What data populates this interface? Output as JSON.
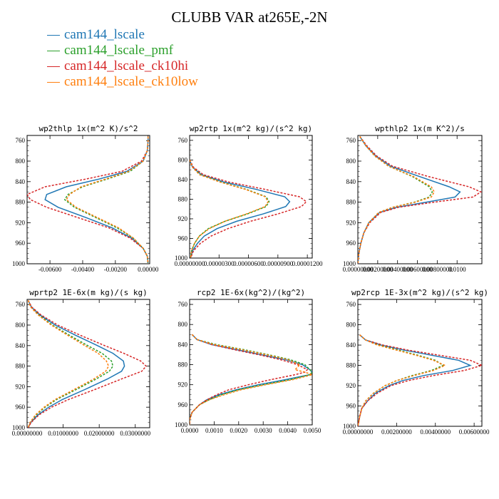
{
  "title": "CLUBB VAR at265E,-2N",
  "legend": [
    {
      "label": "cam144_lscale",
      "color": "#1f77b4"
    },
    {
      "label": "cam144_lscale_pmf",
      "color": "#2ca02c"
    },
    {
      "label": "cam144_lscale_ck10hi",
      "color": "#d62728"
    },
    {
      "label": "cam144_lscale_ck10low",
      "color": "#ff7f0e"
    }
  ],
  "chart_data": [
    {
      "type": "line",
      "title": "wp2thlp  1x(m^2 K)/s^2",
      "ylim": [
        1000,
        750
      ],
      "yticks": [
        760,
        800,
        840,
        880,
        920,
        960,
        1000
      ],
      "xlim": [
        -0.0074,
        0.0001
      ],
      "xticks": [
        -0.006,
        -0.004,
        -0.002,
        0.0
      ],
      "xtick_labels": [
        "-0.00600",
        "-0.00400",
        "-0.00200",
        "0.00000"
      ],
      "y": [
        752,
        760,
        780,
        800,
        820,
        835,
        850,
        865,
        875,
        890,
        910,
        930,
        950,
        970,
        985,
        1000
      ],
      "series": [
        {
          "color": "#1f77b4",
          "dash": false,
          "values": [
            0.0,
            0.0,
            -5e-05,
            -0.0003,
            -0.0013,
            -0.003,
            -0.005,
            -0.0062,
            -0.0063,
            -0.0055,
            -0.0038,
            -0.0022,
            -0.001,
            -0.0003,
            -5e-05,
            0.0
          ]
        },
        {
          "color": "#2ca02c",
          "dash": true,
          "values": [
            0.0,
            0.0,
            -5e-05,
            -0.0003,
            -0.0011,
            -0.0025,
            -0.004,
            -0.0049,
            -0.0051,
            -0.0045,
            -0.0032,
            -0.0019,
            -0.0009,
            -0.0003,
            -5e-05,
            0.0
          ]
        },
        {
          "color": "#d62728",
          "dash": true,
          "values": [
            0.0,
            0.0,
            -5e-05,
            -0.0004,
            -0.0016,
            -0.0038,
            -0.0063,
            -0.0074,
            -0.0072,
            -0.0062,
            -0.0043,
            -0.0024,
            -0.0011,
            -0.0003,
            -5e-05,
            0.0
          ]
        },
        {
          "color": "#ff7f0e",
          "dash": true,
          "values": [
            0.0,
            0.0,
            -5e-05,
            -0.0003,
            -0.0012,
            -0.0026,
            -0.0041,
            -0.0048,
            -0.005,
            -0.0044,
            -0.0031,
            -0.0018,
            -0.0009,
            -0.0003,
            -5e-05,
            0.0
          ]
        }
      ]
    },
    {
      "type": "line",
      "title": "wp2rtp  1x(m^2 kg)/(s^2 kg)",
      "ylim": [
        1000,
        750
      ],
      "yticks": [
        760,
        800,
        840,
        880,
        920,
        960,
        1000
      ],
      "xlim": [
        0,
        1.25e-05
      ],
      "xticks": [
        0,
        3e-06,
        6e-06,
        9e-06,
        1.2e-05
      ],
      "xtick_labels": [
        "0.00000000",
        "0.00000300",
        "0.00000600",
        "0.00000900",
        "0.00001200"
      ],
      "y": [
        800,
        815,
        830,
        845,
        860,
        875,
        885,
        895,
        910,
        925,
        940,
        955,
        970,
        985,
        1000
      ],
      "series": [
        {
          "color": "#1f77b4",
          "dash": false,
          "values": [
            0.0,
            3e-07,
            1.2e-06,
            3.5e-06,
            6.8e-06,
            9.7e-06,
            1.02e-05,
            9.8e-06,
            7.5e-06,
            4.8e-06,
            2.8e-06,
            1.5e-06,
            8e-07,
            3e-07,
            1e-07
          ]
        },
        {
          "color": "#2ca02c",
          "dash": true,
          "values": [
            0.0,
            3e-07,
            1.1e-06,
            3.2e-06,
            5.8e-06,
            7.8e-06,
            8.1e-06,
            7.8e-06,
            5.9e-06,
            3.6e-06,
            1.9e-06,
            1e-06,
            5e-07,
            2e-07,
            1e-07
          ]
        },
        {
          "color": "#d62728",
          "dash": true,
          "values": [
            0.0,
            4e-07,
            1.4e-06,
            4e-06,
            7.7e-06,
            1.12e-05,
            1.19e-05,
            1.14e-05,
            9e-06,
            6.2e-06,
            3.9e-06,
            2.2e-06,
            1.1e-06,
            4e-07,
            1e-07
          ]
        },
        {
          "color": "#ff7f0e",
          "dash": true,
          "values": [
            0.0,
            3e-07,
            1e-06,
            3.1e-06,
            5.7e-06,
            7.7e-06,
            8e-06,
            7.7e-06,
            5.8e-06,
            3.6e-06,
            2e-06,
            1e-06,
            5e-07,
            2e-07,
            1e-07
          ]
        }
      ]
    },
    {
      "type": "line",
      "title": "wpthlp2  1x(m K^2)/s",
      "ylim": [
        1000,
        750
      ],
      "yticks": [
        760,
        800,
        840,
        880,
        920,
        960,
        1000
      ],
      "xlim": [
        0,
        0.0125
      ],
      "xticks": [
        0,
        0.002,
        0.004,
        0.006,
        0.008,
        0.01
      ],
      "xtick_labels": [
        "0.00000000",
        "0.00200000",
        "0.00400000",
        "0.00600000",
        "0.00800000",
        "0.0100"
      ],
      "y": [
        752,
        770,
        790,
        810,
        830,
        850,
        860,
        870,
        880,
        890,
        900,
        920,
        940,
        960,
        980,
        1000
      ],
      "series": [
        {
          "color": "#1f77b4",
          "dash": false,
          "values": [
            0.0002,
            0.0008,
            0.0018,
            0.0033,
            0.0062,
            0.0092,
            0.0103,
            0.0098,
            0.0069,
            0.0039,
            0.0022,
            0.0011,
            0.0006,
            0.0003,
            0.0001,
            0.0
          ]
        },
        {
          "color": "#2ca02c",
          "dash": true,
          "values": [
            0.0002,
            0.0008,
            0.0017,
            0.0031,
            0.0055,
            0.0072,
            0.0075,
            0.0072,
            0.0057,
            0.0035,
            0.0021,
            0.0011,
            0.0006,
            0.0003,
            0.0001,
            0.0
          ]
        },
        {
          "color": "#d62728",
          "dash": true,
          "values": [
            0.0002,
            0.0009,
            0.0019,
            0.0035,
            0.0071,
            0.0112,
            0.0124,
            0.0116,
            0.0077,
            0.0041,
            0.0023,
            0.0012,
            0.0006,
            0.0003,
            0.0001,
            0.0
          ]
        },
        {
          "color": "#ff7f0e",
          "dash": true,
          "values": [
            0.0002,
            0.0008,
            0.0017,
            0.0031,
            0.0056,
            0.0074,
            0.0077,
            0.0074,
            0.0058,
            0.0035,
            0.0021,
            0.0011,
            0.0006,
            0.0003,
            0.0001,
            0.0
          ]
        }
      ]
    },
    {
      "type": "line",
      "title": "wprtp2  1E-6x(m kg)/(s kg)",
      "ylim": [
        1000,
        750
      ],
      "yticks": [
        760,
        800,
        840,
        880,
        920,
        960,
        1000
      ],
      "xlim": [
        0,
        0.034
      ],
      "xticks": [
        0,
        0.01,
        0.02,
        0.03
      ],
      "xtick_labels": [
        "0.00000000",
        "0.01000000",
        "0.02000000",
        "0.03000000"
      ],
      "y": [
        752,
        765,
        780,
        800,
        820,
        840,
        855,
        870,
        880,
        890,
        905,
        925,
        945,
        960,
        975,
        990,
        1000
      ],
      "series": [
        {
          "color": "#1f77b4",
          "dash": false,
          "values": [
            0.0003,
            0.0012,
            0.0035,
            0.0078,
            0.0135,
            0.0195,
            0.0238,
            0.0267,
            0.027,
            0.0262,
            0.0223,
            0.0162,
            0.0098,
            0.006,
            0.003,
            0.001,
            0.0003
          ]
        },
        {
          "color": "#2ca02c",
          "dash": true,
          "values": [
            0.0003,
            0.0011,
            0.0032,
            0.007,
            0.0118,
            0.0168,
            0.0208,
            0.0234,
            0.0238,
            0.0228,
            0.0192,
            0.0138,
            0.0082,
            0.005,
            0.0025,
            0.0008,
            0.0003
          ]
        },
        {
          "color": "#d62728",
          "dash": true,
          "values": [
            0.0003,
            0.0013,
            0.0038,
            0.0085,
            0.0148,
            0.0215,
            0.0268,
            0.0315,
            0.033,
            0.0318,
            0.0262,
            0.019,
            0.0115,
            0.0068,
            0.0033,
            0.0011,
            0.0003
          ]
        },
        {
          "color": "#ff7f0e",
          "dash": true,
          "values": [
            0.0003,
            0.001,
            0.003,
            0.0067,
            0.0113,
            0.016,
            0.0197,
            0.022,
            0.0226,
            0.0218,
            0.0185,
            0.0132,
            0.0078,
            0.0047,
            0.0023,
            0.0008,
            0.0003
          ]
        }
      ]
    },
    {
      "type": "line",
      "title": "rcp2  1E-6x(kg^2)/(kg^2)",
      "ylim": [
        1000,
        750
      ],
      "yticks": [
        760,
        800,
        840,
        880,
        920,
        960,
        1000
      ],
      "xlim": [
        0,
        0.005
      ],
      "xticks": [
        0,
        0.001,
        0.002,
        0.003,
        0.004,
        0.005
      ],
      "xtick_labels": [
        "0.0000",
        "0.0010",
        "0.0020",
        "0.0030",
        "0.0040",
        "0.0050"
      ],
      "y": [
        820,
        830,
        840,
        850,
        860,
        870,
        880,
        890,
        895,
        900,
        910,
        920,
        930,
        940,
        950,
        960,
        975,
        990,
        1000
      ],
      "series": [
        {
          "color": "#1f77b4",
          "dash": false,
          "values": [
            0.0001,
            0.0003,
            0.0009,
            0.0019,
            0.0029,
            0.0039,
            0.0046,
            0.0049,
            0.005,
            0.0049,
            0.0039,
            0.0028,
            0.0019,
            0.0012,
            0.0007,
            0.0004,
            0.0001,
            0.0,
            0.0
          ]
        },
        {
          "color": "#2ca02c",
          "dash": true,
          "values": [
            0.0001,
            0.0003,
            0.0011,
            0.0022,
            0.0032,
            0.0041,
            0.0047,
            0.0049,
            0.005,
            0.0049,
            0.0041,
            0.003,
            0.002,
            0.0013,
            0.0008,
            0.0004,
            0.0001,
            0.0,
            0.0
          ]
        },
        {
          "color": "#d62728",
          "dash": true,
          "values": [
            0.0001,
            0.0003,
            0.0009,
            0.0018,
            0.0028,
            0.0037,
            0.0044,
            0.0048,
            0.0047,
            0.0043,
            0.0033,
            0.0024,
            0.0016,
            0.0011,
            0.0007,
            0.0004,
            0.0001,
            0.0,
            0.0
          ]
        },
        {
          "color": "#ff7f0e",
          "dash": true,
          "values": [
            0.0001,
            0.0003,
            0.001,
            0.0021,
            0.0031,
            0.004,
            0.0045,
            0.0043,
            0.0047,
            0.005,
            0.0042,
            0.0031,
            0.0021,
            0.0014,
            0.0008,
            0.0004,
            0.0001,
            0.0,
            0.0
          ]
        }
      ]
    },
    {
      "type": "line",
      "title": "wp2rcp  1E-3x(m^2 kg)/(s^2 kg)",
      "ylim": [
        1000,
        750
      ],
      "yticks": [
        760,
        800,
        840,
        880,
        920,
        960,
        1000
      ],
      "xlim": [
        0,
        0.0064
      ],
      "xticks": [
        0,
        0.002,
        0.004,
        0.006
      ],
      "xtick_labels": [
        "0.00000000",
        "0.00200000",
        "0.00400000",
        "0.00600000"
      ],
      "y": [
        820,
        830,
        840,
        850,
        860,
        870,
        880,
        890,
        900,
        910,
        920,
        935,
        950,
        965,
        980,
        1000
      ],
      "series": [
        {
          "color": "#1f77b4",
          "dash": false,
          "values": [
            0.0001,
            0.0004,
            0.0012,
            0.0024,
            0.0038,
            0.0052,
            0.0058,
            0.0049,
            0.0034,
            0.0023,
            0.0016,
            0.0009,
            0.0005,
            0.0002,
            0.0001,
            0.0
          ]
        },
        {
          "color": "#2ca02c",
          "dash": true,
          "values": [
            0.0001,
            0.0004,
            0.0011,
            0.0021,
            0.0031,
            0.004,
            0.0044,
            0.0038,
            0.0028,
            0.002,
            0.0014,
            0.0008,
            0.0004,
            0.0002,
            0.0001,
            0.0
          ]
        },
        {
          "color": "#d62728",
          "dash": true,
          "values": [
            0.0001,
            0.0004,
            0.0013,
            0.0026,
            0.0042,
            0.0058,
            0.0064,
            0.0055,
            0.0039,
            0.0026,
            0.0017,
            0.001,
            0.0005,
            0.0002,
            0.0001,
            0.0
          ]
        },
        {
          "color": "#ff7f0e",
          "dash": true,
          "values": [
            0.0001,
            0.0004,
            0.001,
            0.002,
            0.003,
            0.0039,
            0.0045,
            0.0039,
            0.0029,
            0.002,
            0.0014,
            0.0008,
            0.0004,
            0.0002,
            0.0001,
            0.0
          ]
        }
      ]
    }
  ]
}
